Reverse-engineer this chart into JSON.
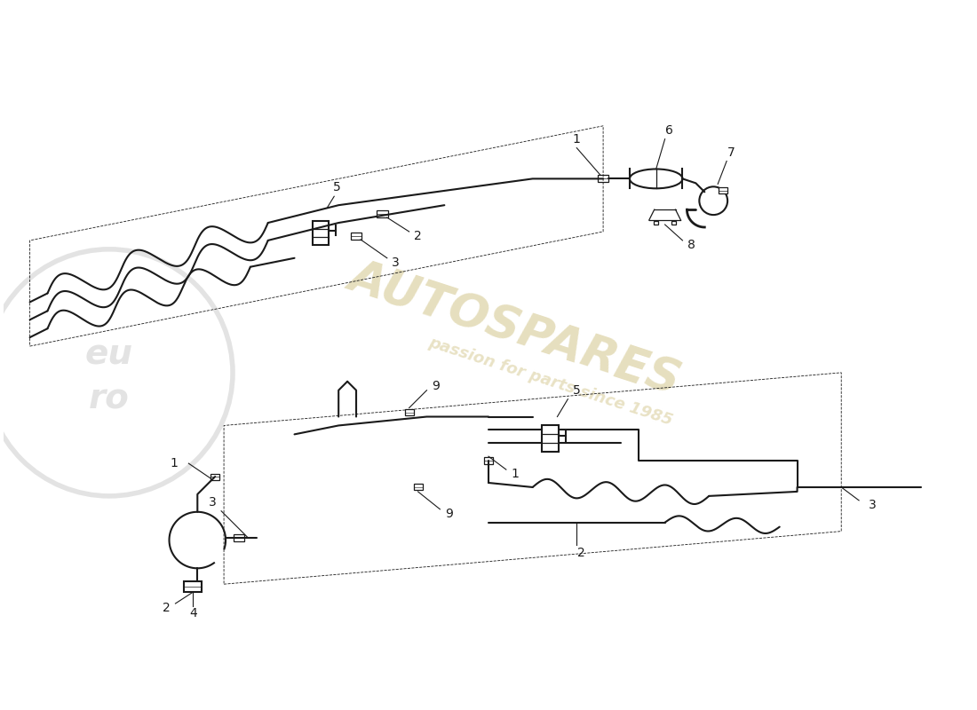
{
  "bg_color": "#ffffff",
  "line_color": "#1a1a1a",
  "watermark_text_color": "#c8b870",
  "watermark_alpha": 0.45,
  "logo_color": "#c0c0c0",
  "fig_width": 11.0,
  "fig_height": 8.0,
  "dpi": 100,
  "xlim": [
    0,
    110
  ],
  "ylim": [
    0,
    80
  ]
}
